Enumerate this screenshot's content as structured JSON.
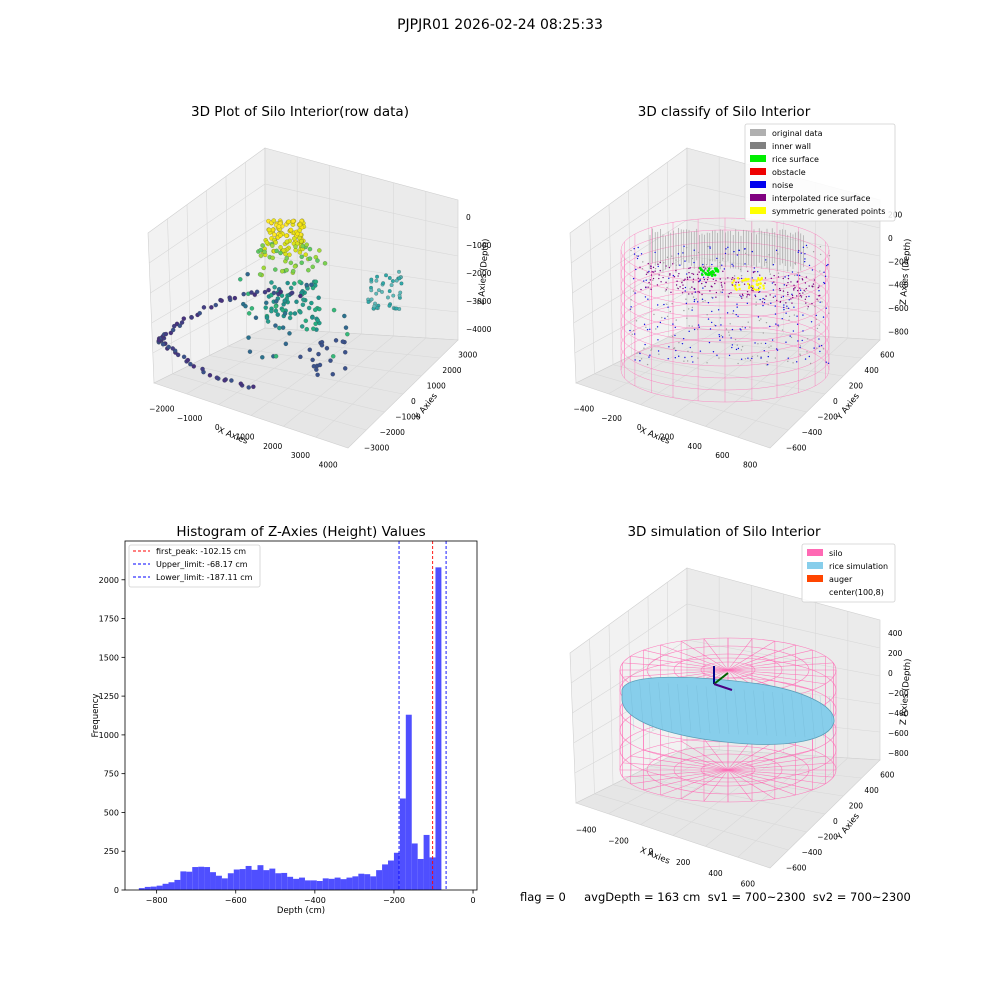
{
  "figure": {
    "title": "PJPJR01 2026-02-24 08:25:33",
    "footer": "flag = 0     avgDepth = 163 cm  sv1 = 700~2300  sv2 = 700~2300"
  },
  "panels": {
    "raw": {
      "title": "3D Plot of Silo Interior(row data)",
      "xlabel": "X Axies",
      "ylabel": "Y Axies",
      "zlabel": "Z Axies (Depth)",
      "xticks": [
        "−2000",
        "−1000",
        "0",
        "1000",
        "2000",
        "3000",
        "4000"
      ],
      "yticks": [
        "−3000",
        "−2000",
        "−1000",
        "0",
        "1000",
        "2000",
        "3000"
      ],
      "zticks": [
        "0",
        "−1000",
        "−2000",
        "−3000",
        "−4000"
      ]
    },
    "classify": {
      "title": "3D classify of Silo Interior",
      "xlabel": "X Axies",
      "ylabel": "Y Axies",
      "zlabel": "Z Axies (Depth)",
      "xticks": [
        "−400",
        "−200",
        "0",
        "200",
        "400",
        "600",
        "800"
      ],
      "yticks": [
        "−600",
        "−400",
        "−200",
        "0",
        "200",
        "400",
        "600"
      ],
      "zticks": [
        "200",
        "0",
        "−200",
        "−400",
        "−600",
        "−800"
      ],
      "legend": [
        {
          "label": "original data",
          "color": "#b0b0b0"
        },
        {
          "label": "inner wall",
          "color": "#808080"
        },
        {
          "label": "rice surface",
          "color": "#00ee00"
        },
        {
          "label": "obstacle",
          "color": "#ee0000"
        },
        {
          "label": "noise",
          "color": "#0000ee"
        },
        {
          "label": "interpolated rice surface",
          "color": "#800080"
        },
        {
          "label": "symmetric generated points",
          "color": "#ffff00"
        }
      ]
    },
    "histogram": {
      "title": "Histogram of Z-Axies (Height) Values",
      "xlabel": "Depth (cm)",
      "ylabel": "Frequency",
      "legend": [
        {
          "label": "first_peak: -102.15 cm",
          "color": "#ff0000"
        },
        {
          "label": "Upper_limit: -68.17 cm",
          "color": "#0000ff"
        },
        {
          "label": "Lower_limit: -187.11 cm",
          "color": "#0000ff"
        }
      ]
    },
    "simulation": {
      "title": "3D simulation of Silo Interior",
      "xlabel": "X Axies",
      "ylabel": "Y Axies",
      "zlabel": "Z Axies (Depth)",
      "xticks": [
        "−400",
        "−200",
        "0",
        "200",
        "400",
        "600"
      ],
      "yticks": [
        "−600",
        "−400",
        "−200",
        "0",
        "200",
        "400",
        "600"
      ],
      "zticks": [
        "400",
        "200",
        "0",
        "−200",
        "−400",
        "−600",
        "−800"
      ],
      "legend": [
        {
          "label": "silo",
          "color": "#ff69b4"
        },
        {
          "label": "rice simulation",
          "color": "#87ceeb"
        },
        {
          "label": "auger",
          "color": "#ff4500"
        },
        {
          "label": "center(100,8)",
          "color": ""
        }
      ]
    }
  },
  "chart_data": [
    {
      "type": "histogram",
      "title": "Histogram of Z-Axies (Height) Values",
      "xlabel": "Depth (cm)",
      "ylabel": "Frequency",
      "xlim": [
        -880,
        10
      ],
      "ylim": [
        0,
        2250
      ],
      "xticks": [
        -800,
        -600,
        -400,
        -200,
        0
      ],
      "yticks": [
        0,
        250,
        500,
        750,
        1000,
        1250,
        1500,
        1750,
        2000
      ],
      "bar_color": "#4040ff",
      "bins": [
        {
          "x0": -845,
          "x1": -830,
          "count": 12
        },
        {
          "x0": -830,
          "x1": -815,
          "count": 20
        },
        {
          "x0": -815,
          "x1": -800,
          "count": 22
        },
        {
          "x0": -800,
          "x1": -785,
          "count": 28
        },
        {
          "x0": -785,
          "x1": -770,
          "count": 40
        },
        {
          "x0": -770,
          "x1": -755,
          "count": 50
        },
        {
          "x0": -755,
          "x1": -740,
          "count": 65
        },
        {
          "x0": -740,
          "x1": -725,
          "count": 120
        },
        {
          "x0": -725,
          "x1": -710,
          "count": 118
        },
        {
          "x0": -710,
          "x1": -695,
          "count": 148
        },
        {
          "x0": -695,
          "x1": -680,
          "count": 150
        },
        {
          "x0": -680,
          "x1": -665,
          "count": 148
        },
        {
          "x0": -665,
          "x1": -650,
          "count": 115
        },
        {
          "x0": -650,
          "x1": -635,
          "count": 92
        },
        {
          "x0": -635,
          "x1": -620,
          "count": 75
        },
        {
          "x0": -620,
          "x1": -605,
          "count": 108
        },
        {
          "x0": -605,
          "x1": -590,
          "count": 132
        },
        {
          "x0": -590,
          "x1": -575,
          "count": 135
        },
        {
          "x0": -575,
          "x1": -560,
          "count": 155
        },
        {
          "x0": -560,
          "x1": -545,
          "count": 130
        },
        {
          "x0": -545,
          "x1": -530,
          "count": 160
        },
        {
          "x0": -530,
          "x1": -515,
          "count": 128
        },
        {
          "x0": -515,
          "x1": -500,
          "count": 138
        },
        {
          "x0": -500,
          "x1": -485,
          "count": 108
        },
        {
          "x0": -485,
          "x1": -470,
          "count": 110
        },
        {
          "x0": -470,
          "x1": -455,
          "count": 85
        },
        {
          "x0": -455,
          "x1": -440,
          "count": 72
        },
        {
          "x0": -440,
          "x1": -425,
          "count": 80
        },
        {
          "x0": -425,
          "x1": -410,
          "count": 62
        },
        {
          "x0": -410,
          "x1": -395,
          "count": 62
        },
        {
          "x0": -395,
          "x1": -380,
          "count": 58
        },
        {
          "x0": -380,
          "x1": -365,
          "count": 75
        },
        {
          "x0": -365,
          "x1": -350,
          "count": 72
        },
        {
          "x0": -350,
          "x1": -335,
          "count": 80
        },
        {
          "x0": -335,
          "x1": -320,
          "count": 70
        },
        {
          "x0": -320,
          "x1": -305,
          "count": 80
        },
        {
          "x0": -305,
          "x1": -290,
          "count": 88
        },
        {
          "x0": -290,
          "x1": -275,
          "count": 105
        },
        {
          "x0": -275,
          "x1": -260,
          "count": 102
        },
        {
          "x0": -260,
          "x1": -245,
          "count": 88
        },
        {
          "x0": -245,
          "x1": -230,
          "count": 128
        },
        {
          "x0": -230,
          "x1": -215,
          "count": 165
        },
        {
          "x0": -215,
          "x1": -200,
          "count": 190
        },
        {
          "x0": -200,
          "x1": -185,
          "count": 240
        },
        {
          "x0": -185,
          "x1": -170,
          "count": 590
        },
        {
          "x0": -170,
          "x1": -155,
          "count": 1130
        },
        {
          "x0": -155,
          "x1": -140,
          "count": 300
        },
        {
          "x0": -140,
          "x1": -125,
          "count": 200
        },
        {
          "x0": -125,
          "x1": -110,
          "count": 355
        },
        {
          "x0": -110,
          "x1": -95,
          "count": 210
        },
        {
          "x0": -95,
          "x1": -80,
          "count": 2080
        }
      ],
      "vlines": [
        {
          "x": -102.15,
          "color": "#ff0000",
          "label": "first_peak: -102.15 cm"
        },
        {
          "x": -68.17,
          "color": "#0000ff",
          "label": "Upper_limit: -68.17 cm"
        },
        {
          "x": -187.11,
          "color": "#0000ff",
          "label": "Lower_limit: -187.11 cm"
        }
      ]
    }
  ]
}
